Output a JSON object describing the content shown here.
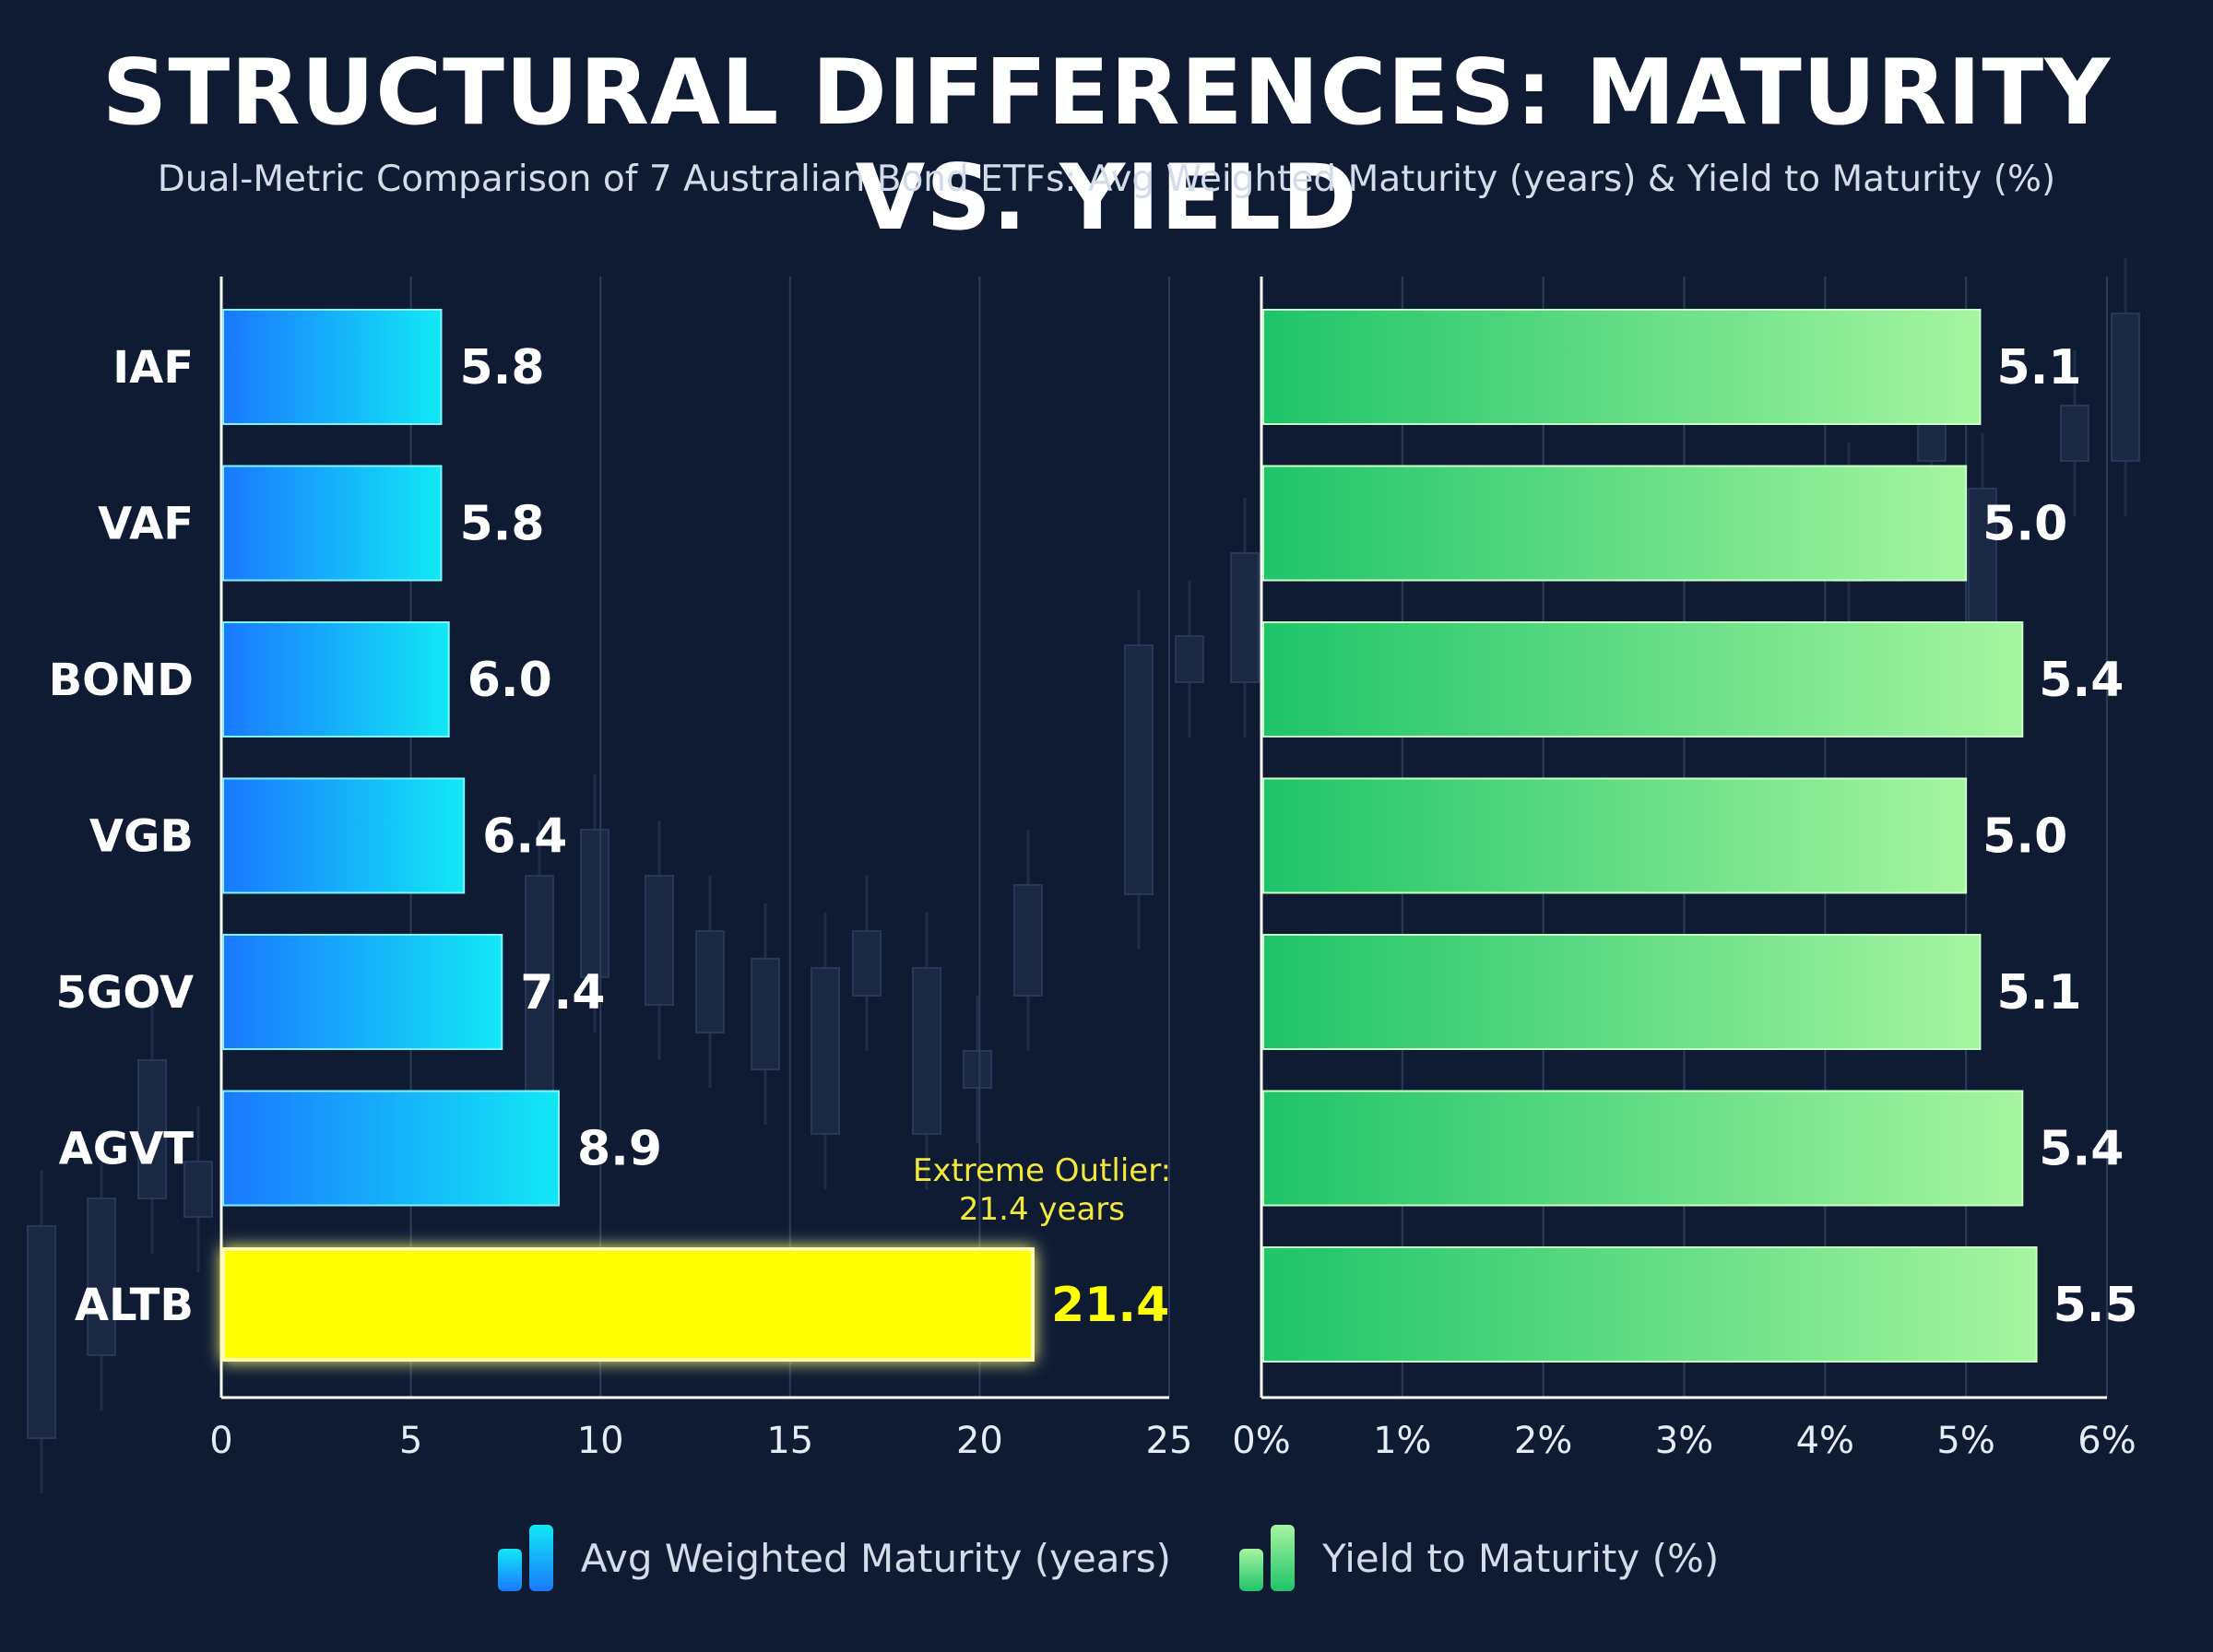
{
  "title": "STRUCTURAL DIFFERENCES: MATURITY VS. YIELD",
  "subtitle": "Dual-Metric Comparison of 7 Australian Bond ETFs: Avg Weighted Maturity (years) & Yield to Maturity (%)",
  "colors": {
    "background": "#0e1b33",
    "maturity_start": "#1a78ff",
    "maturity_end": "#12e8f5",
    "yield_start": "#1fc46a",
    "yield_end": "#a6f5a0",
    "highlight": "#ffff00",
    "grid": "#2c3b5a",
    "text": "#ffffff"
  },
  "chart_data": [
    {
      "type": "bar",
      "orientation": "horizontal",
      "categories": [
        "IAF",
        "VAF",
        "BOND",
        "VGB",
        "5GOV",
        "AGVT",
        "ALTB"
      ],
      "series": [
        {
          "name": "Avg Weighted Maturity (years)",
          "values": [
            5.8,
            5.8,
            6.0,
            6.4,
            7.4,
            8.9,
            21.4
          ],
          "value_labels": [
            "5.8",
            "5.8",
            "6.0",
            "6.4",
            "7.4",
            "8.9",
            "21.4"
          ]
        }
      ],
      "xlim": [
        0,
        25
      ],
      "x_ticks": [
        "0",
        "5",
        "10",
        "15",
        "20",
        "25"
      ],
      "grid": true,
      "highlight": {
        "category": "ALTB",
        "annotation_line1": "Extreme Outlier:",
        "annotation_line2": "21.4 years"
      }
    },
    {
      "type": "bar",
      "orientation": "horizontal",
      "categories": [
        "IAF",
        "VAF",
        "BOND",
        "VGB",
        "5GOV",
        "AGVT",
        "ALTB"
      ],
      "series": [
        {
          "name": "Yield to Maturity (%)",
          "values": [
            5.1,
            5.0,
            5.4,
            5.0,
            5.1,
            5.4,
            5.5
          ],
          "value_labels": [
            "5.1",
            "5.0",
            "5.4",
            "5.0",
            "5.1",
            "5.4",
            "5.5"
          ]
        }
      ],
      "xlim": [
        0,
        6
      ],
      "x_ticks": [
        "0%",
        "1%",
        "2%",
        "3%",
        "4%",
        "5%",
        "6%"
      ],
      "grid": true
    }
  ],
  "legend": {
    "placement": "bottom-center",
    "items": [
      {
        "label": "Avg Weighted Maturity (years)",
        "icon": "bar-chart-icon"
      },
      {
        "label": "Yield to Maturity (%)",
        "icon": "bar-chart-icon"
      }
    ]
  }
}
